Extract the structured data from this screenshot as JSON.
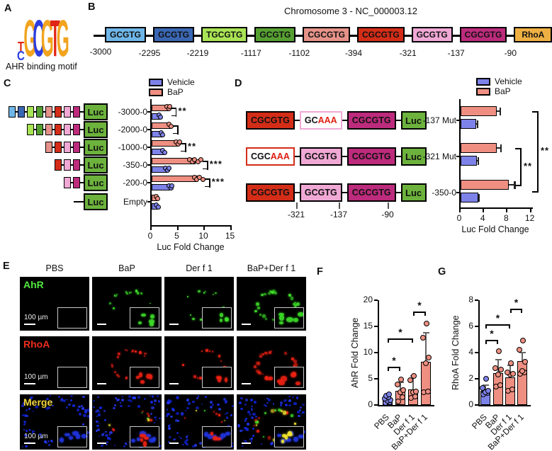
{
  "panels": {
    "A": {
      "label": "A",
      "caption": "AHR binding motif",
      "logo": {
        "stack": [
          {
            "char": "T",
            "color": "#e02616"
          },
          {
            "char": "C",
            "color": "#2b3de0"
          }
        ],
        "letters": [
          {
            "char": "G",
            "color": "#f2a41f"
          },
          {
            "char": "C",
            "color": "#2b3de0"
          },
          {
            "char": "G",
            "color": "#f2a41f"
          },
          {
            "char": "T",
            "color": "#e02616"
          },
          {
            "char": "G",
            "color": "#f2a41f"
          }
        ]
      }
    },
    "B": {
      "label": "B",
      "title": "Chromosome 3 - NC_000003.12",
      "start_label": "-3000",
      "boxes": [
        {
          "text": "GCGTG",
          "fill": "#6fb6e8",
          "after_label": "-2295"
        },
        {
          "text": "GCGTG",
          "fill": "#3a67b3",
          "after_label": "-2219"
        },
        {
          "text": "TGCGTG",
          "fill": "#a9e455",
          "after_label": "-1117"
        },
        {
          "text": "GCGTG",
          "fill": "#56a032",
          "after_label": "-1102"
        },
        {
          "text": "CGCGTG",
          "fill": "#e69288",
          "after_label": "-394"
        },
        {
          "text": "CGCGTG",
          "fill": "#d32d18",
          "after_label": "-321"
        },
        {
          "text": "GCGTG",
          "fill": "#f0a8d5",
          "after_label": "-137"
        },
        {
          "text": "CGCGTG",
          "fill": "#bc2b7c",
          "after_label": "-90"
        }
      ],
      "gene": {
        "text": "RhoA",
        "fill": "#eeb043"
      }
    },
    "C": {
      "label": "C",
      "luc_label": "Luc",
      "luc_color": "#6cb23c",
      "legend": [
        {
          "label": "Vehicle",
          "color": "#7d82e8"
        },
        {
          "label": "BaP",
          "color": "#ee8f82"
        }
      ],
      "constructs": [
        {
          "name": "-3000-0",
          "boxes": [
            "#6fb6e8",
            "#3a67b3",
            "#a9e455",
            "#56a032",
            "#e69288",
            "#d32d18",
            "#f0a8d5",
            "#bc2b7c"
          ]
        },
        {
          "name": "-2000-0",
          "boxes": [
            "#a9e455",
            "#56a032",
            "#e69288",
            "#d32d18",
            "#f0a8d5",
            "#bc2b7c"
          ]
        },
        {
          "name": "-1000-0",
          "boxes": [
            "#e69288",
            "#d32d18",
            "#f0a8d5",
            "#bc2b7c"
          ]
        },
        {
          "name": "-350-0",
          "boxes": [
            "#d32d18",
            "#f0a8d5",
            "#bc2b7c"
          ]
        },
        {
          "name": "-200-0",
          "boxes": [
            "#f0a8d5",
            "#bc2b7c"
          ]
        },
        {
          "name": "Empty",
          "boxes": []
        }
      ]
    },
    "D": {
      "label": "D",
      "luc_label": "Luc",
      "legend": [
        {
          "label": "Vehicle",
          "color": "#7d82e8"
        },
        {
          "label": "BaP",
          "color": "#ee8f82"
        }
      ],
      "constructs": [
        {
          "name": "-137 Mut",
          "boxes": [
            {
              "text": "CGCGTG",
              "fill": "#d32d18"
            },
            {
              "text": "GC",
              "mut": "AAA",
              "fill": "#ffffff",
              "border": "#f0a8d5"
            },
            {
              "text": "CGCGTG",
              "fill": "#bc2b7c"
            }
          ]
        },
        {
          "name": "-321 Mut",
          "boxes": [
            {
              "text": "CGC",
              "mut": "AAA",
              "fill": "#ffffff",
              "border": "#d32d18"
            },
            {
              "text": "GCGTG",
              "fill": "#f0a8d5"
            },
            {
              "text": "CGCGTG",
              "fill": "#bc2b7c"
            }
          ]
        },
        {
          "name": "-350-0",
          "boxes": [
            {
              "text": "CGCGTG",
              "fill": "#d32d18"
            },
            {
              "text": "GCGTG",
              "fill": "#f0a8d5"
            },
            {
              "text": "CGCGTG",
              "fill": "#bc2b7c"
            }
          ]
        }
      ],
      "position_labels": [
        "-321",
        "-137",
        "-90"
      ]
    },
    "E": {
      "label": "E",
      "columns": [
        "PBS",
        "BaP",
        "Der f 1",
        "BaP+Der f 1"
      ],
      "rows": [
        {
          "label": "AhR",
          "color": "#52e83e"
        },
        {
          "label": "RhoA",
          "color": "#ef2c1e"
        },
        {
          "label": "Merge",
          "color": "#f2d63b"
        }
      ],
      "scale_bar": "100 µm",
      "signal_levels": [
        0,
        2,
        1,
        3
      ]
    },
    "F": {
      "label": "F"
    },
    "G": {
      "label": "G"
    }
  },
  "chart_data": [
    {
      "id": "C",
      "type": "bar",
      "orientation": "horizontal",
      "categories": [
        "-3000-0",
        "-2000-0",
        "-1000-0",
        "-350-0",
        "-200-0",
        "Empty"
      ],
      "series": [
        {
          "name": "BaP",
          "color": "#ee8f82",
          "values": [
            3.2,
            3.6,
            4.9,
            8.2,
            8.6,
            1.0
          ],
          "points": [
            [
              2.9,
              3.2,
              3.4
            ],
            [
              3.3,
              3.7
            ],
            [
              4.6,
              5.0,
              5.2
            ],
            [
              7.1,
              7.6,
              8.1,
              8.7,
              9.3
            ],
            [
              8.1,
              8.5,
              9.0,
              9.7
            ],
            [
              0.8,
              1.1
            ]
          ]
        },
        {
          "name": "Vehicle",
          "color": "#7d82e8",
          "values": [
            1.6,
            2.0,
            2.3,
            2.9,
            3.5,
            1.0
          ],
          "points": [
            [
              1.4,
              1.7
            ],
            [
              1.8,
              2.1
            ],
            [
              2.0,
              2.4
            ],
            [
              2.6,
              3.0,
              3.2
            ],
            [
              3.2,
              3.6,
              3.8
            ],
            [
              0.9,
              1.2
            ]
          ]
        }
      ],
      "xlabel": "Luc Fold Change",
      "xlim": [
        0,
        15
      ],
      "xticks": [
        0,
        5,
        10,
        15
      ],
      "significance": [
        {
          "category": "-3000-0",
          "label": "**"
        },
        {
          "category": "-2000-0",
          "label": ""
        },
        {
          "category": "-1000-0",
          "label": "**"
        },
        {
          "category": "-350-0",
          "label": "***"
        },
        {
          "category": "-200-0",
          "label": "***"
        }
      ]
    },
    {
      "id": "D",
      "type": "bar",
      "orientation": "horizontal",
      "categories": [
        "-137 Mut",
        "-321 Mut",
        "-350-0"
      ],
      "series": [
        {
          "name": "BaP",
          "color": "#ee8f82",
          "values": [
            6.1,
            6.2,
            8.2
          ],
          "errors": [
            0.6,
            0.7,
            1.0
          ]
        },
        {
          "name": "Vehicle",
          "color": "#7d82e8",
          "values": [
            2.7,
            2.8,
            3.0
          ],
          "errors": [
            0.15,
            0.2,
            0.15
          ]
        }
      ],
      "xlabel": "Luc Fold Change",
      "xlim": [
        0,
        12
      ],
      "xticks": [
        0,
        4,
        8,
        12
      ],
      "significance": [
        {
          "from": "-321 Mut",
          "to": "-350-0",
          "label": "**"
        },
        {
          "from": "-137 Mut",
          "to": "-350-0",
          "label": "**"
        }
      ]
    },
    {
      "id": "F",
      "type": "bar",
      "orientation": "vertical",
      "categories": [
        "PBS",
        "BaP",
        "Der f 1",
        "BaP+Der f 1"
      ],
      "values": [
        1.0,
        2.7,
        3.0,
        8.3
      ],
      "errors": [
        0.5,
        1.5,
        2.5,
        5.4
      ],
      "bar_colors": [
        "#7d82e8",
        "#ee8f82",
        "#ee8f82",
        "#ee8f82"
      ],
      "points": [
        [
          0.4,
          0.6,
          0.8,
          1.0,
          1.2,
          1.5,
          1.8,
          2.0
        ],
        [
          0.7,
          1.5,
          2.5,
          2.8,
          3.9,
          4.8
        ],
        [
          1.4,
          1.6,
          2.4,
          2.6,
          4.7,
          5.5
        ],
        [
          2.4,
          2.6,
          8.0,
          9.0,
          12.9,
          15.5
        ]
      ],
      "ylabel": "AhR Fold Change",
      "ylim": [
        0,
        20
      ],
      "yticks": [
        0,
        5,
        10,
        15,
        20
      ],
      "significance": [
        {
          "from": "PBS",
          "to": "BaP",
          "label": "*"
        },
        {
          "from": "PBS",
          "to": "Der f 1",
          "label": "*"
        },
        {
          "from": "Der f 1",
          "to": "BaP+Der f 1",
          "label": "*"
        }
      ]
    },
    {
      "id": "G",
      "type": "bar",
      "orientation": "vertical",
      "categories": [
        "PBS",
        "BaP",
        "Der f 1",
        "BaP+Der f 1"
      ],
      "values": [
        1.1,
        2.45,
        2.1,
        3.35
      ],
      "errors": [
        0.4,
        1.0,
        0.9,
        0.65
      ],
      "bar_colors": [
        "#7d82e8",
        "#ee8f82",
        "#ee8f82",
        "#ee8f82"
      ],
      "points": [
        [
          0.8,
          0.9,
          1.0,
          1.1,
          1.3,
          2.0
        ],
        [
          1.4,
          1.5,
          2.3,
          2.7,
          2.8,
          4.1
        ],
        [
          1.1,
          1.2,
          2.3,
          2.4,
          2.5,
          3.2
        ],
        [
          2.4,
          2.5,
          2.6,
          3.3,
          4.2,
          4.9
        ]
      ],
      "ylabel": "RhoA Fold Change",
      "ylim": [
        0,
        8
      ],
      "yticks": [
        0,
        2,
        4,
        6,
        8
      ],
      "significance": [
        {
          "from": "PBS",
          "to": "BaP",
          "label": "*"
        },
        {
          "from": "PBS",
          "to": "Der f 1",
          "label": "*"
        },
        {
          "from": "Der f 1",
          "to": "BaP+Der f 1",
          "label": "*"
        }
      ]
    }
  ]
}
